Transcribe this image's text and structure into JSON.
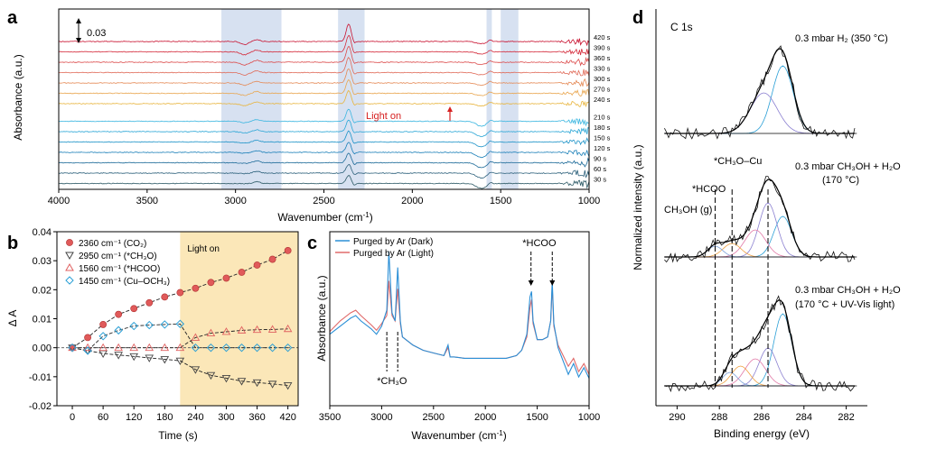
{
  "chart_data": [
    {
      "panel": "a",
      "type": "line",
      "xlabel": "Wavenumber (cm",
      "xlabel_sup": "-1",
      "xlabel_end": ")",
      "ylabel": "Absorbance (a.u.)",
      "xlim": [
        4000,
        1000
      ],
      "xticks": [
        4000,
        3500,
        3000,
        2500,
        2000,
        1500,
        1000
      ],
      "scale_bar": "0.03",
      "annotation": "Light on",
      "highlight_bands": [
        [
          3080,
          2740
        ],
        [
          2420,
          2270
        ],
        [
          1580,
          1550
        ],
        [
          1500,
          1400
        ]
      ],
      "series_labels": [
        "420 s",
        "390 s",
        "360 s",
        "330 s",
        "300 s",
        "270 s",
        "240 s",
        "210 s",
        "180 s",
        "150 s",
        "120 s",
        "90 s",
        "60 s",
        "30 s"
      ],
      "series_colors": [
        "#c8102e",
        "#d42a3a",
        "#dc4b4b",
        "#e06a58",
        "#e58a56",
        "#e9a64f",
        "#e8b43c",
        "#3bb6e0",
        "#2aa6d6",
        "#1d93c8",
        "#1a7fb8",
        "#1d6b99",
        "#2a5f7a",
        "#2d5a66"
      ]
    },
    {
      "panel": "b",
      "type": "scatter",
      "xlabel": "Time (s)",
      "ylabel": "Δ A",
      "xlim": [
        -30,
        440
      ],
      "ylim": [
        -0.02,
        0.04
      ],
      "xticks": [
        0,
        60,
        120,
        180,
        240,
        300,
        360,
        420
      ],
      "yticks": [
        -0.02,
        -0.01,
        0.0,
        0.01,
        0.02,
        0.03,
        0.04
      ],
      "ytick_labels": [
        "-0.02",
        "-0.01",
        "0.00",
        "0.01",
        "0.02",
        "0.03",
        "0.04"
      ],
      "shaded_region": [
        210,
        440
      ],
      "shaded_label": "Light on",
      "x": [
        0,
        30,
        60,
        90,
        120,
        150,
        180,
        210,
        240,
        270,
        300,
        330,
        360,
        390,
        420
      ],
      "series": [
        {
          "name": "2360 cm⁻¹ (CO₂)",
          "marker": "circle",
          "color": "#e05a5a",
          "values": [
            0.0,
            0.0035,
            0.008,
            0.0115,
            0.0135,
            0.0155,
            0.0175,
            0.019,
            0.0205,
            0.0225,
            0.024,
            0.026,
            0.0285,
            0.0305,
            0.0335
          ]
        },
        {
          "name": "2950 cm⁻¹ (*CH₃O)",
          "marker": "triangle-down",
          "color": "#444444",
          "values": [
            0.0,
            -0.001,
            -0.002,
            -0.0025,
            -0.003,
            -0.0035,
            -0.004,
            -0.0045,
            -0.0075,
            -0.0095,
            -0.0105,
            -0.0115,
            -0.012,
            -0.0125,
            -0.013
          ]
        },
        {
          "name": "1560 cm⁻¹ (*HCOO)",
          "marker": "triangle-up",
          "color": "#e06060",
          "values": [
            0.0,
            0.0,
            0.0,
            0.0,
            0.0,
            0.0,
            0.0,
            0.0,
            0.0035,
            0.005,
            0.0055,
            0.006,
            0.0062,
            0.0063,
            0.0065
          ]
        },
        {
          "name": "1450 cm⁻¹ (Cu–OCH₃)",
          "marker": "diamond",
          "color": "#2a9fd6",
          "values": [
            0.0,
            -0.001,
            0.004,
            0.006,
            0.0075,
            0.0078,
            0.008,
            0.0082,
            0.0,
            0.0,
            0.0,
            0.0,
            0.0,
            0.0,
            0.0
          ]
        }
      ]
    },
    {
      "panel": "c",
      "type": "line",
      "xlabel": "Wavenumber (cm",
      "xlabel_sup": "-1",
      "xlabel_end": ")",
      "ylabel": "Absorbance (a.u.)",
      "xlim": [
        3500,
        1000
      ],
      "xticks": [
        3500,
        3000,
        2500,
        2000,
        1500,
        1000
      ],
      "annotations": [
        "*HCOO",
        "*CH₃O"
      ],
      "series": [
        {
          "name": "Purged by Ar (Dark)",
          "color": "#2a8fd6",
          "x": [
            3500,
            3400,
            3300,
            3250,
            3200,
            3100,
            3050,
            3000,
            2950,
            2930,
            2900,
            2870,
            2845,
            2820,
            2800,
            2700,
            2600,
            2500,
            2400,
            2360,
            2340,
            2300,
            2200,
            2000,
            1900,
            1800,
            1700,
            1650,
            1600,
            1570,
            1555,
            1540,
            1500,
            1450,
            1400,
            1370,
            1355,
            1340,
            1300,
            1250,
            1200,
            1150,
            1100,
            1050,
            1000
          ],
          "values": [
            0.3,
            0.36,
            0.42,
            0.44,
            0.4,
            0.34,
            0.3,
            0.36,
            0.48,
            0.92,
            0.46,
            0.4,
            0.8,
            0.4,
            0.28,
            0.22,
            0.18,
            0.16,
            0.14,
            0.22,
            0.13,
            0.13,
            0.12,
            0.12,
            0.12,
            0.12,
            0.14,
            0.18,
            0.3,
            0.58,
            0.62,
            0.4,
            0.26,
            0.26,
            0.28,
            0.4,
            0.7,
            0.38,
            0.2,
            0.1,
            0.0,
            0.08,
            -0.02,
            0.05,
            -0.03
          ]
        },
        {
          "name": "Purged by Ar (Light)",
          "color": "#e06a6a",
          "x": [
            3500,
            3400,
            3300,
            3250,
            3200,
            3100,
            3050,
            3000,
            2950,
            2930,
            2900,
            2870,
            2845,
            2820,
            2800,
            2700,
            2600,
            2500,
            2400,
            2360,
            2340,
            2300,
            2200,
            2000,
            1900,
            1800,
            1700,
            1650,
            1600,
            1570,
            1555,
            1540,
            1500,
            1450,
            1400,
            1370,
            1355,
            1340,
            1300,
            1250,
            1200,
            1150,
            1100,
            1050,
            1000
          ],
          "values": [
            0.32,
            0.4,
            0.46,
            0.48,
            0.44,
            0.37,
            0.33,
            0.38,
            0.44,
            0.7,
            0.44,
            0.4,
            0.64,
            0.38,
            0.28,
            0.22,
            0.18,
            0.16,
            0.14,
            0.2,
            0.13,
            0.13,
            0.12,
            0.12,
            0.12,
            0.12,
            0.14,
            0.18,
            0.28,
            0.5,
            0.56,
            0.38,
            0.26,
            0.26,
            0.28,
            0.4,
            0.66,
            0.36,
            0.22,
            0.14,
            0.06,
            0.12,
            0.02,
            0.08,
            0.0
          ]
        }
      ]
    },
    {
      "panel": "d",
      "type": "line",
      "title": "C 1s",
      "xlabel": "Binding energy (eV)",
      "ylabel": "Normalized intensity (a.u.)",
      "xlim": [
        291,
        281
      ],
      "xticks": [
        290,
        288,
        286,
        284,
        282
      ],
      "spectra": [
        {
          "label_line1": "0.3 mbar H₂ (350 °C)",
          "label_line2": ""
        },
        {
          "label_line1": "0.3 mbar CH₃OH + H₂O",
          "label_line2": "(170 °C)"
        },
        {
          "label_line1": "0.3 mbar CH₃OH + H₂O",
          "label_line2": "(170 °C + UV-Vis light)"
        }
      ],
      "peak_labels": [
        "*CH₃O–Cu",
        "*HCOO",
        "CH₃OH (g)"
      ],
      "reference_lines_eV": [
        288.2,
        287.4,
        285.7
      ],
      "component_colors": [
        "#2a9fd6",
        "#8a7fd0",
        "#e27ba8",
        "#f0a040",
        "#7a9fd8"
      ]
    }
  ],
  "panel_labels": [
    "a",
    "b",
    "c",
    "d"
  ]
}
